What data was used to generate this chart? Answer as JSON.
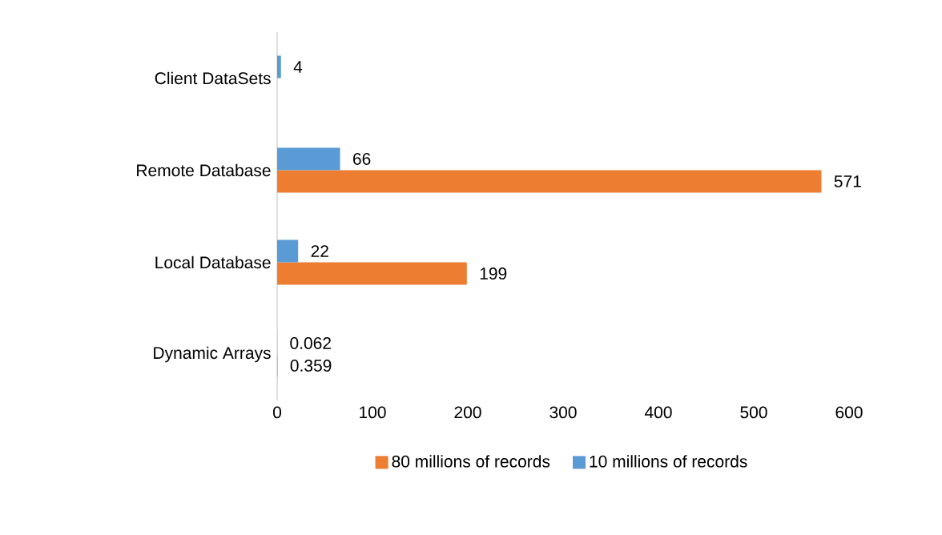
{
  "chart_data": {
    "type": "bar",
    "orientation": "horizontal",
    "categories": [
      "Client DataSets",
      "Remote Database",
      "Local Database",
      "Dynamic Arrays"
    ],
    "series": [
      {
        "name": "80 millions of records",
        "color": "#ed7d31",
        "values": [
          null,
          571,
          199,
          0.359
        ]
      },
      {
        "name": "10 millions of records",
        "color": "#5b9bd5",
        "values": [
          4,
          66,
          22,
          0.062
        ]
      }
    ],
    "xlim": [
      0,
      600
    ],
    "xticks": [
      0,
      100,
      200,
      300,
      400,
      500,
      600
    ],
    "data_labels": true,
    "legend": "bottom"
  }
}
